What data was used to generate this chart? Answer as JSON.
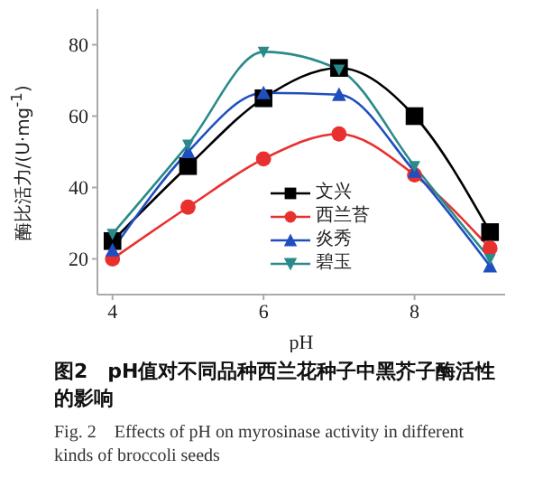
{
  "chart_data": {
    "type": "line",
    "title": "图2　pH值对不同品种西兰花种子中黑芥子酶活性的影响",
    "subtitle": "Fig. 2　Effects of pH on myrosinase activity in different kinds of broccoli seeds",
    "xlabel": "pH",
    "ylabel": "酶比活力/(U·mg$^{-1}$)",
    "x": [
      4,
      5,
      6,
      7,
      8,
      9
    ],
    "xlim": [
      3.8,
      9.2
    ],
    "xticks": [
      4,
      6,
      8
    ],
    "ylim": [
      10,
      90
    ],
    "yticks": [
      20,
      40,
      60,
      80
    ],
    "grid": false,
    "legend": "bottom",
    "series": [
      {
        "name": "文兴",
        "color": "#000000",
        "marker": "square",
        "values": [
          25,
          46,
          65,
          73.5,
          60,
          27.5
        ]
      },
      {
        "name": "西兰苔",
        "color": "#e8312f",
        "marker": "circle",
        "values": [
          20,
          34.5,
          48,
          55,
          43.5,
          23
        ]
      },
      {
        "name": "炎秀",
        "color": "#1f4fbf",
        "marker": "triangle",
        "values": [
          22.5,
          50,
          66.5,
          66,
          44.5,
          18
        ]
      },
      {
        "name": "碧玉",
        "color": "#2a8a8a",
        "marker": "triangle-down",
        "values": [
          27,
          52,
          78,
          73,
          46,
          20
        ]
      }
    ]
  }
}
